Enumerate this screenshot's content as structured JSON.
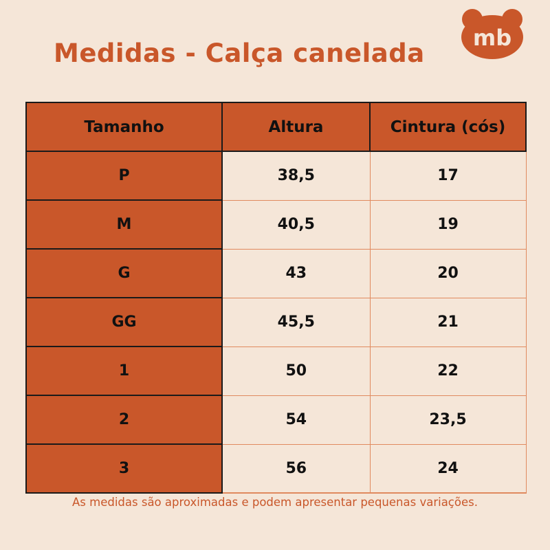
{
  "title": "Medidas - Calça canelada",
  "logo": {
    "icon": "bear-logo-icon",
    "text": "mb",
    "color": "#c9572a"
  },
  "table": {
    "headers": [
      "Tamanho",
      "Altura",
      "Cintura (cós)"
    ],
    "rows": [
      [
        "P",
        "38,5",
        "17"
      ],
      [
        "M",
        "40,5",
        "19"
      ],
      [
        "G",
        "43",
        "20"
      ],
      [
        "GG",
        "45,5",
        "21"
      ],
      [
        "1",
        "50",
        "22"
      ],
      [
        "2",
        "54",
        "23,5"
      ],
      [
        "3",
        "56",
        "24"
      ]
    ]
  },
  "footnote": "As medidas são aproximadas e podem apresentar pequenas variações.",
  "colors": {
    "background": "#f5e6d8",
    "accent": "#c9572a",
    "cell_border": "#e0895e",
    "text": "#111111"
  }
}
